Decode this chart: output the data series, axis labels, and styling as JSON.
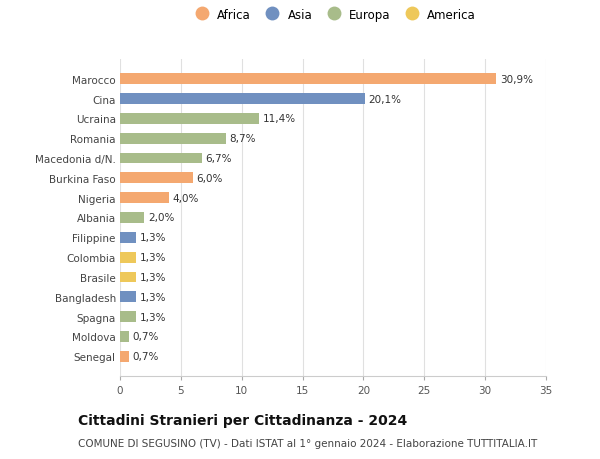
{
  "countries": [
    "Marocco",
    "Cina",
    "Ucraina",
    "Romania",
    "Macedonia d/N.",
    "Burkina Faso",
    "Nigeria",
    "Albania",
    "Filippine",
    "Colombia",
    "Brasile",
    "Bangladesh",
    "Spagna",
    "Moldova",
    "Senegal"
  ],
  "values": [
    30.9,
    20.1,
    11.4,
    8.7,
    6.7,
    6.0,
    4.0,
    2.0,
    1.3,
    1.3,
    1.3,
    1.3,
    1.3,
    0.7,
    0.7
  ],
  "labels": [
    "30,9%",
    "20,1%",
    "11,4%",
    "8,7%",
    "6,7%",
    "6,0%",
    "4,0%",
    "2,0%",
    "1,3%",
    "1,3%",
    "1,3%",
    "1,3%",
    "1,3%",
    "0,7%",
    "0,7%"
  ],
  "continents": [
    "Africa",
    "Asia",
    "Europa",
    "Europa",
    "Europa",
    "Africa",
    "Africa",
    "Europa",
    "Asia",
    "America",
    "America",
    "Asia",
    "Europa",
    "Europa",
    "Africa"
  ],
  "colors": {
    "Africa": "#F4A870",
    "Asia": "#7090C0",
    "Europa": "#A8BC8A",
    "America": "#EEC85A"
  },
  "legend_order": [
    "Africa",
    "Asia",
    "Europa",
    "America"
  ],
  "title": "Cittadini Stranieri per Cittadinanza - 2024",
  "subtitle": "COMUNE DI SEGUSINO (TV) - Dati ISTAT al 1° gennaio 2024 - Elaborazione TUTTITALIA.IT",
  "xlim": [
    0,
    35
  ],
  "xticks": [
    0,
    5,
    10,
    15,
    20,
    25,
    30,
    35
  ],
  "bg_color": "#ffffff",
  "grid_color": "#e0e0e0",
  "bar_height": 0.55,
  "label_fontsize": 7.5,
  "tick_fontsize": 7.5,
  "title_fontsize": 10,
  "subtitle_fontsize": 7.5
}
